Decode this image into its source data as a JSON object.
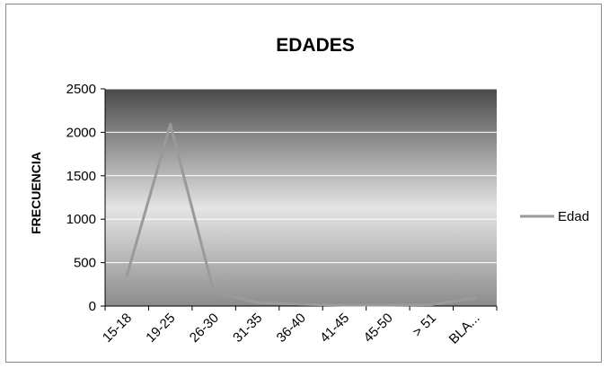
{
  "chart_data": {
    "type": "line",
    "title": "EDADES",
    "xlabel": "",
    "ylabel": "FRECUENCIA",
    "categories": [
      "15-18",
      "19-25",
      "26-30",
      "31-35",
      "36-40",
      "41-45",
      "45-50",
      "> 51",
      "BLA..."
    ],
    "series": [
      {
        "name": "Edad",
        "values": [
          350,
          2090,
          160,
          40,
          20,
          10,
          10,
          15,
          90
        ]
      }
    ],
    "ylim": [
      0,
      2500
    ],
    "yticks": [
      0,
      500,
      1000,
      1500,
      2000,
      2500
    ],
    "grid": true,
    "legend": "right",
    "colors": {
      "line": "#9a9a9a",
      "plot_top": "#4a4a4a",
      "plot_mid": "#e4e4e4",
      "plot_bottom": "#8c8c8c",
      "gridline": "#ffffff"
    }
  }
}
